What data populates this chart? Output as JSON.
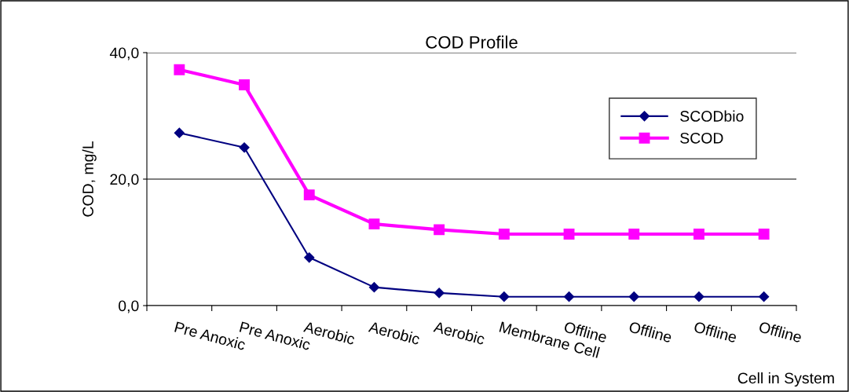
{
  "chart_data": {
    "type": "line",
    "title": "COD Profile",
    "xlabel": "Cell in System",
    "ylabel": "COD, mg/L",
    "categories": [
      "Pre Anoxic",
      "Pre Anoxic",
      "Aerobic",
      "Aerobic",
      "Aerobic",
      "Membrane Cell",
      "Offline",
      "Offline",
      "Offline",
      "Offline"
    ],
    "series": [
      {
        "name": "SCODbio",
        "color": "#000080",
        "marker": "diamond",
        "values": [
          27.3,
          25.0,
          7.6,
          2.9,
          2.0,
          1.4,
          1.4,
          1.4,
          1.4,
          1.4
        ]
      },
      {
        "name": "SCOD",
        "color": "#ff00ff",
        "marker": "square",
        "values": [
          37.3,
          34.9,
          17.5,
          12.9,
          12.0,
          11.3,
          11.3,
          11.3,
          11.3,
          11.3
        ]
      }
    ],
    "ylim": [
      0,
      40
    ],
    "yticks": [
      {
        "value": 0,
        "label": "0,0"
      },
      {
        "value": 20,
        "label": "20,0"
      },
      {
        "value": 40,
        "label": "40,0"
      }
    ],
    "grid": "y",
    "legend": "top right",
    "line_style": "solid"
  }
}
